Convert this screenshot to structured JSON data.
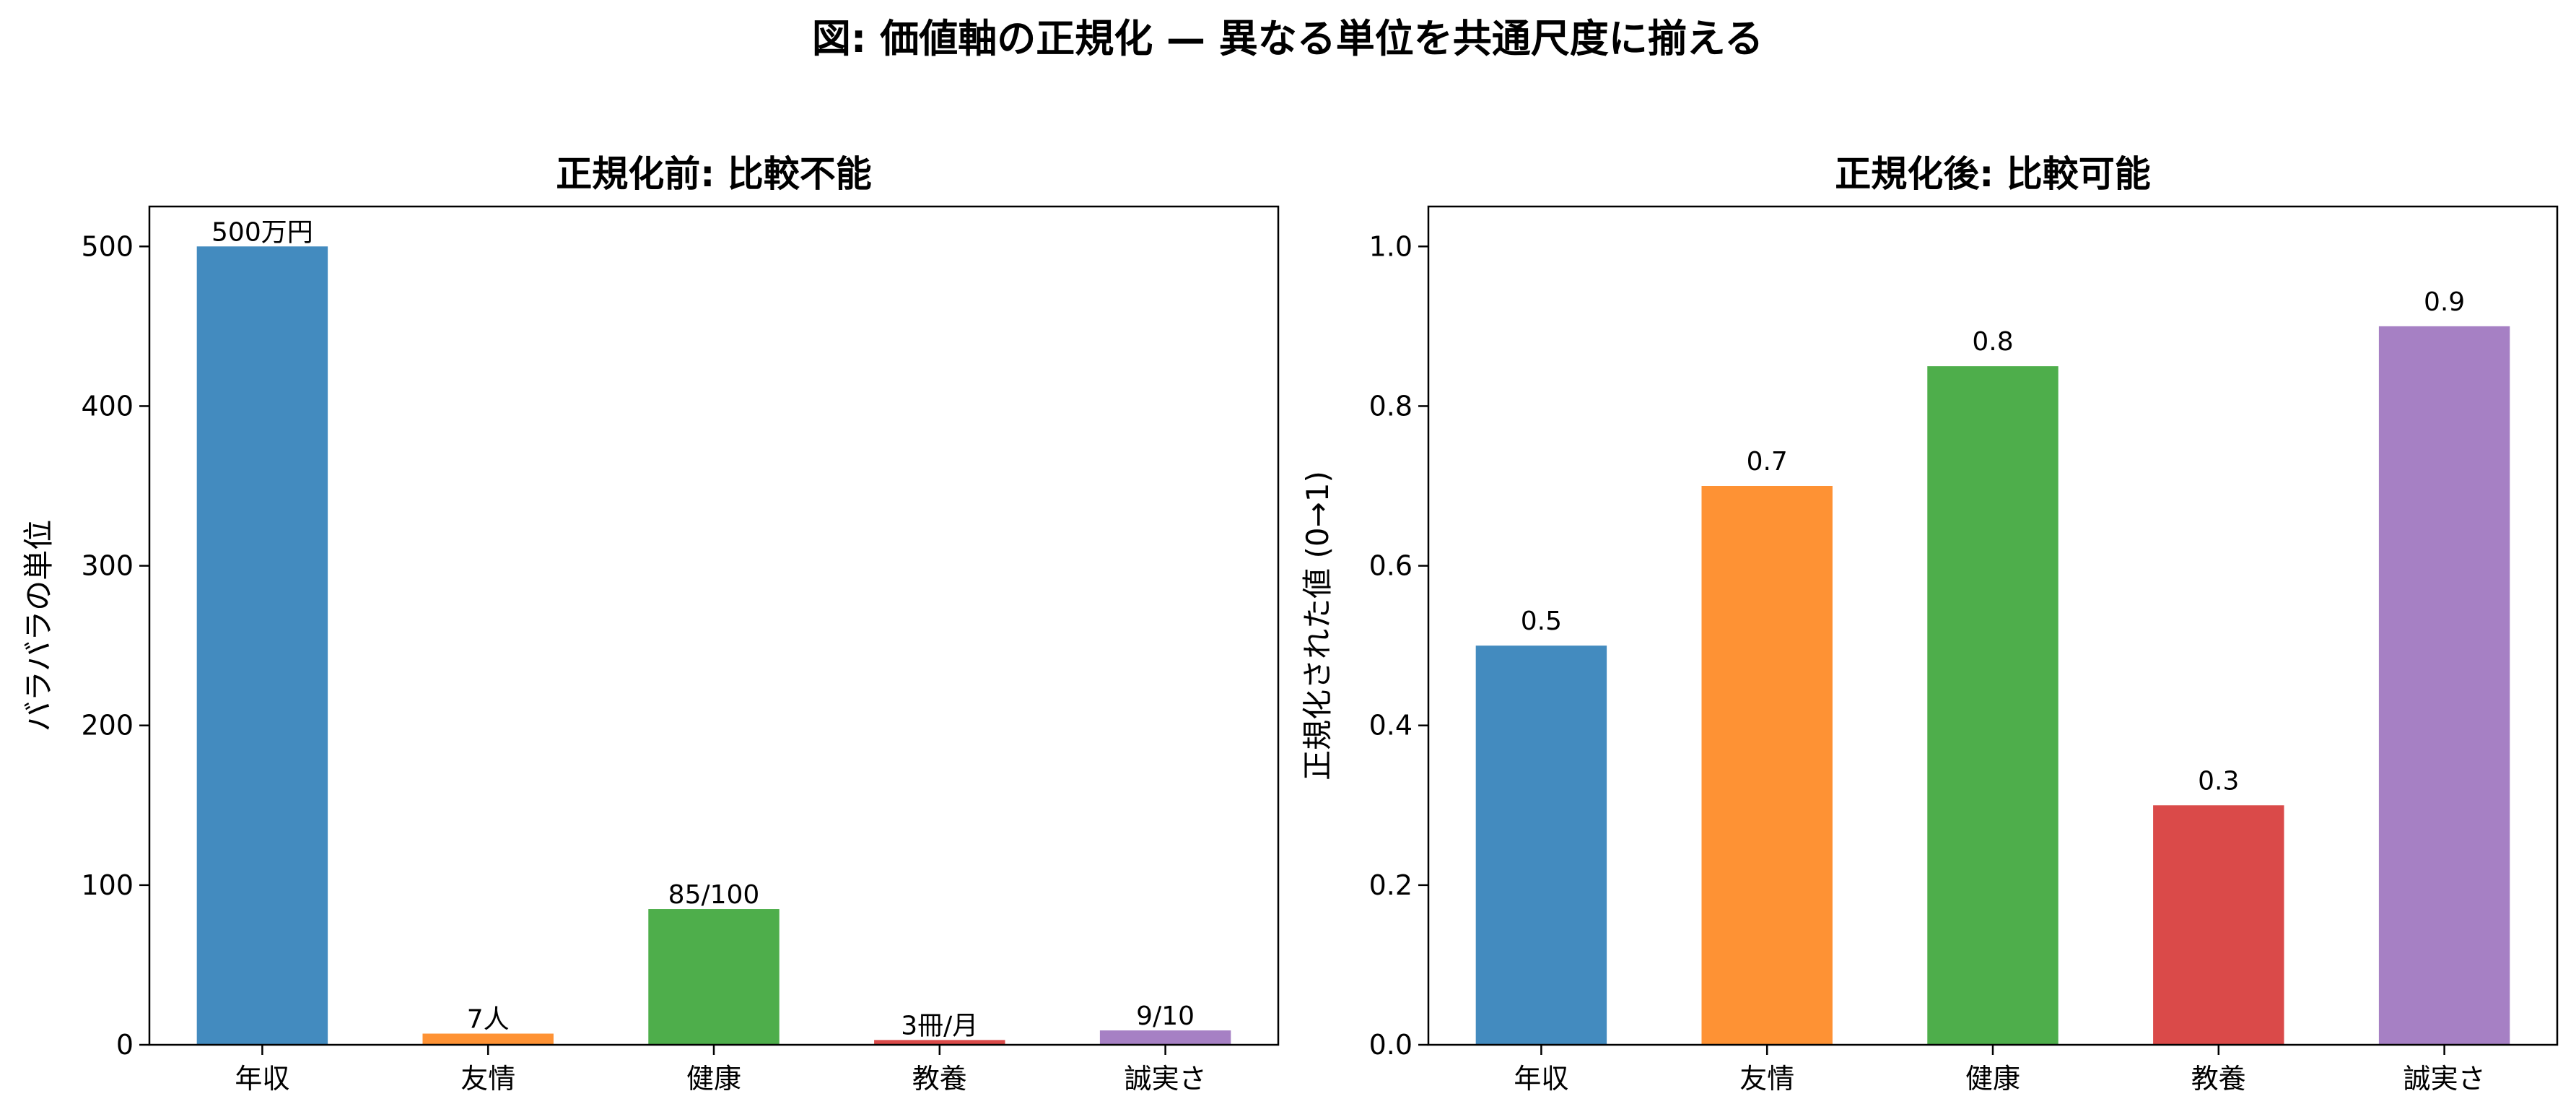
{
  "figure": {
    "title": "図: 価値軸の正規化 — 異なる単位を共通尺度に揃える"
  },
  "chart_data": [
    {
      "type": "bar",
      "title": "正規化前: 比較不能",
      "xlabel": "",
      "ylabel": "バラバラの単位",
      "categories": [
        "年収",
        "友情",
        "健康",
        "教養",
        "誠実さ"
      ],
      "values": [
        500,
        7,
        85,
        3,
        9
      ],
      "data_labels": [
        "500万円",
        "7人",
        "85/100",
        "3冊/月",
        "9/10"
      ],
      "colors": [
        "#438bbf",
        "#fe9234",
        "#4eae4b",
        "#da4a49",
        "#a680c4"
      ],
      "ylim": [
        0,
        525
      ],
      "yticks": [
        0,
        100,
        200,
        300,
        400,
        500
      ],
      "ytick_labels": [
        "0",
        "100",
        "200",
        "300",
        "400",
        "500"
      ],
      "grid": false,
      "legend": "none"
    },
    {
      "type": "bar",
      "title": "正規化後: 比較可能",
      "xlabel": "",
      "ylabel": "正規化された値 (0→1)",
      "categories": [
        "年収",
        "友情",
        "健康",
        "教養",
        "誠実さ"
      ],
      "values": [
        0.5,
        0.7,
        0.85,
        0.3,
        0.9
      ],
      "data_labels": [
        "0.5",
        "0.7",
        "0.8",
        "0.3",
        "0.9"
      ],
      "colors": [
        "#438bbf",
        "#fe9234",
        "#4eae4b",
        "#da4a49",
        "#a680c4"
      ],
      "ylim": [
        0,
        1.05
      ],
      "yticks": [
        0,
        0.2,
        0.4,
        0.6,
        0.8,
        1.0
      ],
      "ytick_labels": [
        "0.0",
        "0.2",
        "0.4",
        "0.6",
        "0.8",
        "1.0"
      ],
      "grid": false,
      "legend": "none"
    }
  ]
}
